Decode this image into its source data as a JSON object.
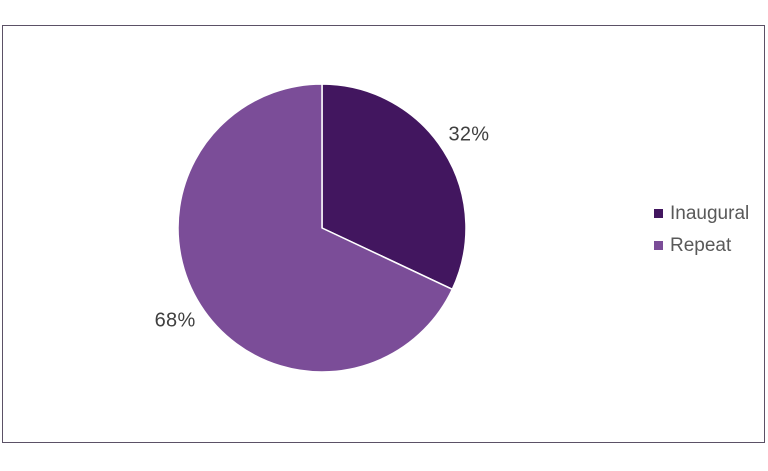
{
  "chart_data": {
    "type": "pie",
    "title": "",
    "categories": [
      "Inaugural",
      "Repeat"
    ],
    "values": [
      32,
      68
    ],
    "data_labels": [
      "32%",
      "68%"
    ],
    "colors": [
      "#42165f",
      "#7b4d98"
    ],
    "start_angle_deg": 0,
    "direction": "clockwise",
    "legend_position": "right",
    "slice_border_color": "#ffffff",
    "label_text_color": "#404040",
    "legend_text_color": "#595959",
    "frame_border_color": "#5b5166",
    "background_color": "#ffffff"
  }
}
